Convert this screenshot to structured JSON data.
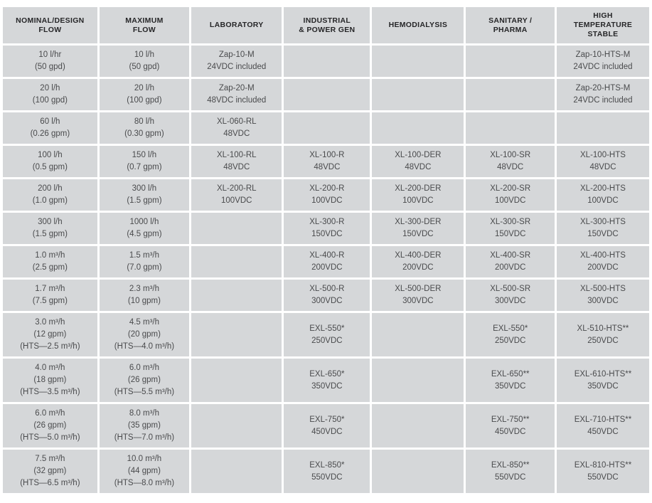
{
  "colors": {
    "cell_bg": "#d5d7d9",
    "grid": "#ffffff",
    "header_text": "#262628",
    "body_text": "#4a4b4d"
  },
  "table": {
    "columns": [
      {
        "id": "nominal-design-flow",
        "lines": [
          "NOMINAL/DESIGN",
          "FLOW"
        ]
      },
      {
        "id": "maximum-flow",
        "lines": [
          "MAXIMUM",
          "FLOW"
        ]
      },
      {
        "id": "laboratory",
        "lines": [
          "LABORATORY"
        ]
      },
      {
        "id": "industrial-power-gen",
        "lines": [
          "INDUSTRIAL",
          "& POWER GEN"
        ]
      },
      {
        "id": "hemodialysis",
        "lines": [
          "HEMODIALYSIS"
        ]
      },
      {
        "id": "sanitary-pharma",
        "lines": [
          "SANITARY /",
          "PHARMA"
        ]
      },
      {
        "id": "high-temperature-stable",
        "lines": [
          "HIGH",
          "TEMPERATURE",
          "STABLE"
        ]
      }
    ],
    "rows": [
      {
        "cells": [
          [
            "10 l/hr",
            "(50 gpd)"
          ],
          [
            "10 l/h",
            "(50 gpd)"
          ],
          [
            "Zap-10-M",
            "24VDC included"
          ],
          [],
          [],
          [],
          [
            "Zap-10-HTS-M",
            "24VDC included"
          ]
        ]
      },
      {
        "cells": [
          [
            "20 l/h",
            "(100 gpd)"
          ],
          [
            "20 l/h",
            "(100 gpd)"
          ],
          [
            "Zap-20-M",
            "48VDC included"
          ],
          [],
          [],
          [],
          [
            "Zap-20-HTS-M",
            "24VDC included"
          ]
        ]
      },
      {
        "cells": [
          [
            "60 l/h",
            "(0.26 gpm)"
          ],
          [
            "80 l/h",
            "(0.30 gpm)"
          ],
          [
            "XL-060-RL",
            "48VDC"
          ],
          [],
          [],
          [],
          []
        ]
      },
      {
        "cells": [
          [
            "100 l/h",
            "(0.5 gpm)"
          ],
          [
            "150 l/h",
            "(0.7 gpm)"
          ],
          [
            "XL-100-RL",
            "48VDC"
          ],
          [
            "XL-100-R",
            "48VDC"
          ],
          [
            "XL-100-DER",
            "48VDC"
          ],
          [
            "XL-100-SR",
            "48VDC"
          ],
          [
            "XL-100-HTS",
            "48VDC"
          ]
        ]
      },
      {
        "cells": [
          [
            "200 l/h",
            "(1.0 gpm)"
          ],
          [
            "300 l/h",
            "(1.5 gpm)"
          ],
          [
            "XL-200-RL",
            "100VDC"
          ],
          [
            "XL-200-R",
            "100VDC"
          ],
          [
            "XL-200-DER",
            "100VDC"
          ],
          [
            "XL-200-SR",
            "100VDC"
          ],
          [
            "XL-200-HTS",
            "100VDC"
          ]
        ]
      },
      {
        "cells": [
          [
            "300 l/h",
            "(1.5 gpm)"
          ],
          [
            "1000 l/h",
            "(4.5 gpm)"
          ],
          [],
          [
            "XL-300-R",
            "150VDC"
          ],
          [
            "XL-300-DER",
            "150VDC"
          ],
          [
            "XL-300-SR",
            "150VDC"
          ],
          [
            "XL-300-HTS",
            "150VDC"
          ]
        ]
      },
      {
        "cells": [
          [
            "1.0 m³/h",
            "(2.5 gpm)"
          ],
          [
            "1.5 m³/h",
            "(7.0 gpm)"
          ],
          [],
          [
            "XL-400-R",
            "200VDC"
          ],
          [
            "XL-400-DER",
            "200VDC"
          ],
          [
            "XL-400-SR",
            "200VDC"
          ],
          [
            "XL-400-HTS",
            "200VDC"
          ]
        ]
      },
      {
        "cells": [
          [
            "1.7 m³/h",
            "(7.5 gpm)"
          ],
          [
            "2.3 m³/h",
            "(10 gpm)"
          ],
          [],
          [
            "XL-500-R",
            "300VDC"
          ],
          [
            "XL-500-DER",
            "300VDC"
          ],
          [
            "XL-500-SR",
            "300VDC"
          ],
          [
            "XL-500-HTS",
            "300VDC"
          ]
        ]
      },
      {
        "cells": [
          [
            "3.0 m³/h",
            "(12 gpm)",
            "(HTS—2.5 m³/h)"
          ],
          [
            "4.5 m³/h",
            "(20 gpm)",
            "(HTS—4.0 m³/h)"
          ],
          [],
          [
            "EXL-550*",
            "250VDC"
          ],
          [],
          [
            "EXL-550*",
            "250VDC"
          ],
          [
            "XL-510-HTS**",
            "250VDC"
          ]
        ]
      },
      {
        "cells": [
          [
            "4.0 m³/h",
            "(18 gpm)",
            "(HTS—3.5 m³/h)"
          ],
          [
            "6.0 m³/h",
            "(26 gpm)",
            "(HTS—5.5 m³/h)"
          ],
          [],
          [
            "EXL-650*",
            "350VDC"
          ],
          [],
          [
            "EXL-650**",
            "350VDC"
          ],
          [
            "EXL-610-HTS**",
            "350VDC"
          ]
        ]
      },
      {
        "cells": [
          [
            "6.0 m³/h",
            "(26 gpm)",
            "(HTS—5.0 m³/h)"
          ],
          [
            "8.0 m³/h",
            "(35 gpm)",
            "(HTS—7.0 m³/h)"
          ],
          [],
          [
            "EXL-750*",
            "450VDC"
          ],
          [],
          [
            "EXL-750**",
            "450VDC"
          ],
          [
            "EXL-710-HTS**",
            "450VDC"
          ]
        ]
      },
      {
        "cells": [
          [
            "7.5 m³/h",
            "(32 gpm)",
            "(HTS—6.5 m³/h)"
          ],
          [
            "10.0 m³/h",
            "(44 gpm)",
            "(HTS—8.0 m³/h)"
          ],
          [],
          [
            "EXL-850*",
            "550VDC"
          ],
          [],
          [
            "EXL-850**",
            "550VDC"
          ],
          [
            "EXL-810-HTS**",
            "550VDC"
          ]
        ]
      }
    ]
  }
}
